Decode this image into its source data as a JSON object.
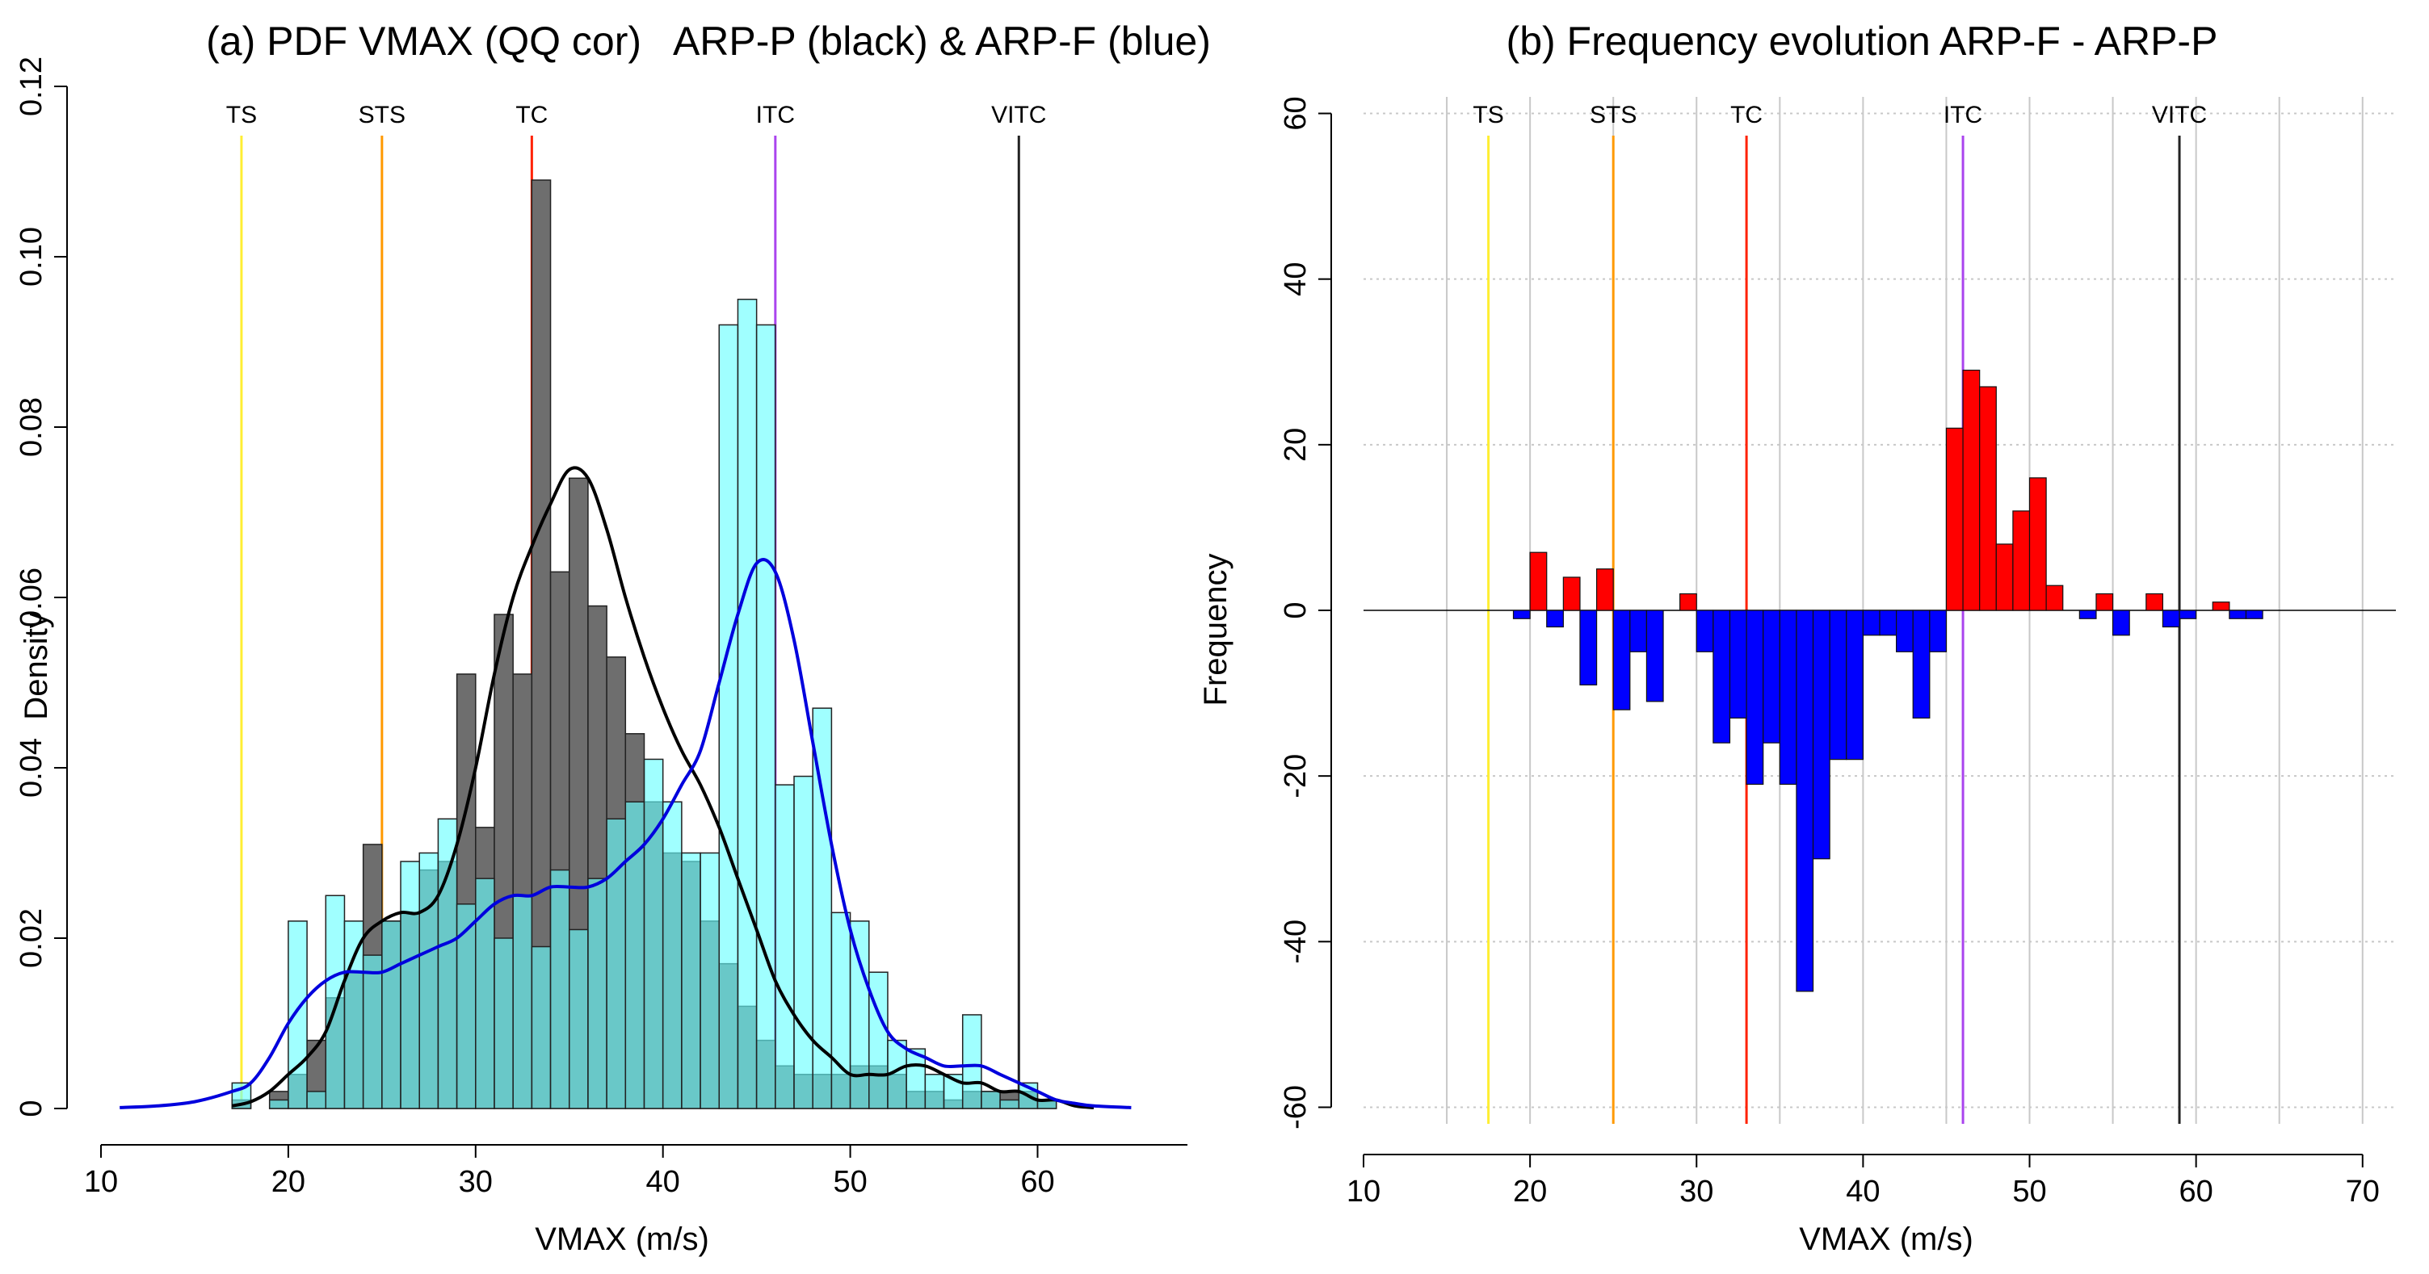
{
  "chart_data": [
    {
      "type": "histogram",
      "title": "(a) PDF VMAX (QQ cor)   ARP-P (black) & ARP-F (blue)",
      "xlabel": "VMAX (m/s)",
      "ylabel": "Density",
      "xlim": [
        10,
        68
      ],
      "ylim": [
        0,
        0.12
      ],
      "xticks": [
        10,
        20,
        30,
        40,
        50,
        60
      ],
      "yticks": [
        0,
        0.02,
        0.04,
        0.06,
        0.08,
        0.1,
        0.12
      ],
      "ytick_labels": [
        "0",
        "0.02",
        "0.04",
        "0.06",
        "0.08",
        "0.10",
        "0.12"
      ],
      "bin_start": 17,
      "bin_width": 1,
      "categories_lines": [
        {
          "label": "TS",
          "x": 17.5,
          "color": "#ffee33"
        },
        {
          "label": "STS",
          "x": 25,
          "color": "#ff9900"
        },
        {
          "label": "TC",
          "x": 33,
          "color": "#ff2200"
        },
        {
          "label": "ITC",
          "x": 46,
          "color": "#aa44ee"
        },
        {
          "label": "VITC",
          "x": 59,
          "color": "#222222"
        }
      ],
      "series": [
        {
          "name": "ARP-P",
          "kind": "histogram",
          "color": "#6e6e6e",
          "values": [
            0.001,
            0,
            0.002,
            0.004,
            0.008,
            0.013,
            0.016,
            0.031,
            0.022,
            0.023,
            0.028,
            0.029,
            0.051,
            0.033,
            0.058,
            0.051,
            0.109,
            0.063,
            0.074,
            0.059,
            0.053,
            0.044,
            0.036,
            0.03,
            0.029,
            0.022,
            0.017,
            0.012,
            0.008,
            0.005,
            0.004,
            0.004,
            0.004,
            0.005,
            0.005,
            0.004,
            0.002,
            0.002,
            0.001,
            0.002,
            0.002,
            0.002,
            0.002,
            0.001
          ]
        },
        {
          "name": "ARP-F",
          "kind": "histogram",
          "color": "#66ffff",
          "values": [
            0.003,
            0,
            0.001,
            0.022,
            0.002,
            0.025,
            0.022,
            0.018,
            0.022,
            0.029,
            0.03,
            0.034,
            0.024,
            0.027,
            0.02,
            0.025,
            0.019,
            0.028,
            0.021,
            0.027,
            0.034,
            0.036,
            0.041,
            0.036,
            0.03,
            0.03,
            0.092,
            0.095,
            0.092,
            0.038,
            0.039,
            0.047,
            0.023,
            0.022,
            0.016,
            0.008,
            0.007,
            0.004,
            0.004,
            0.011,
            0.002,
            0.001,
            0.003,
            0.001
          ]
        },
        {
          "name": "ARP-P density",
          "kind": "line",
          "color": "#000000",
          "x": [
            17,
            18,
            19,
            20,
            21,
            22,
            23,
            24,
            25,
            26,
            27,
            28,
            29,
            30,
            31,
            32,
            33,
            34,
            35,
            36,
            37,
            38,
            39,
            40,
            41,
            42,
            43,
            44,
            45,
            46,
            47,
            48,
            49,
            50,
            51,
            52,
            53,
            54,
            55,
            56,
            57,
            58,
            59,
            60,
            61,
            62,
            63
          ],
          "y": [
            0.0003,
            0.0008,
            0.002,
            0.004,
            0.006,
            0.009,
            0.015,
            0.02,
            0.022,
            0.023,
            0.023,
            0.025,
            0.031,
            0.04,
            0.051,
            0.06,
            0.066,
            0.071,
            0.075,
            0.074,
            0.068,
            0.06,
            0.053,
            0.047,
            0.042,
            0.038,
            0.033,
            0.027,
            0.021,
            0.015,
            0.011,
            0.008,
            0.006,
            0.004,
            0.004,
            0.004,
            0.005,
            0.005,
            0.004,
            0.003,
            0.003,
            0.002,
            0.002,
            0.001,
            0.001,
            0.0003,
            0.0001
          ]
        },
        {
          "name": "ARP-F density",
          "kind": "line",
          "color": "#0000dd",
          "x": [
            11,
            13,
            15,
            17,
            18,
            19,
            20,
            21,
            22,
            23,
            24,
            25,
            26,
            27,
            28,
            29,
            30,
            31,
            32,
            33,
            34,
            35,
            36,
            37,
            38,
            39,
            40,
            41,
            42,
            43,
            44,
            45,
            46,
            47,
            48,
            49,
            50,
            51,
            52,
            53,
            54,
            55,
            56,
            57,
            58,
            59,
            60,
            61,
            62,
            63,
            65
          ],
          "y": [
            0.0001,
            0.0003,
            0.0008,
            0.002,
            0.003,
            0.006,
            0.01,
            0.013,
            0.015,
            0.016,
            0.016,
            0.016,
            0.017,
            0.018,
            0.019,
            0.02,
            0.022,
            0.024,
            0.025,
            0.025,
            0.026,
            0.026,
            0.026,
            0.027,
            0.029,
            0.031,
            0.034,
            0.038,
            0.042,
            0.05,
            0.058,
            0.064,
            0.063,
            0.055,
            0.043,
            0.031,
            0.021,
            0.014,
            0.009,
            0.007,
            0.006,
            0.005,
            0.005,
            0.005,
            0.004,
            0.003,
            0.002,
            0.001,
            0.0006,
            0.0003,
            0.0001
          ]
        }
      ]
    },
    {
      "type": "bar",
      "title": "(b) Frequency evolution ARP-F - ARP-P",
      "xlabel": "VMAX (m/s)",
      "ylabel": "Frequency",
      "xlim": [
        10,
        72
      ],
      "ylim": [
        -62,
        62
      ],
      "xticks": [
        10,
        20,
        30,
        40,
        50,
        60,
        70
      ],
      "yticks": [
        -60,
        -40,
        -20,
        0,
        20,
        40,
        60
      ],
      "grid_x": [
        15,
        20,
        25,
        30,
        35,
        40,
        45,
        50,
        55,
        60,
        65,
        70
      ],
      "grid_y": [
        -60,
        -40,
        -20,
        20,
        40,
        60
      ],
      "bin_start": 19,
      "bin_width": 1,
      "positive_color": "#ff0000",
      "negative_color": "#0000ff",
      "categories_lines": [
        {
          "label": "TS",
          "x": 17.5,
          "color": "#ffee33"
        },
        {
          "label": "STS",
          "x": 25,
          "color": "#ff9900"
        },
        {
          "label": "TC",
          "x": 33,
          "color": "#ff2200"
        },
        {
          "label": "ITC",
          "x": 46,
          "color": "#aa44ee"
        },
        {
          "label": "VITC",
          "x": 59,
          "color": "#222222"
        }
      ],
      "values": [
        -1,
        7,
        -2,
        4,
        -9,
        5,
        -12,
        -5,
        -11,
        0,
        2,
        -5,
        -16,
        -13,
        -21,
        -16,
        -21,
        -46,
        -30,
        -18,
        -18,
        -3,
        -3,
        -5,
        -13,
        -5,
        22,
        29,
        27,
        8,
        12,
        16,
        3,
        0,
        -1,
        2,
        -3,
        0,
        2,
        -2,
        -1,
        0,
        1,
        -1,
        -1
      ]
    }
  ]
}
